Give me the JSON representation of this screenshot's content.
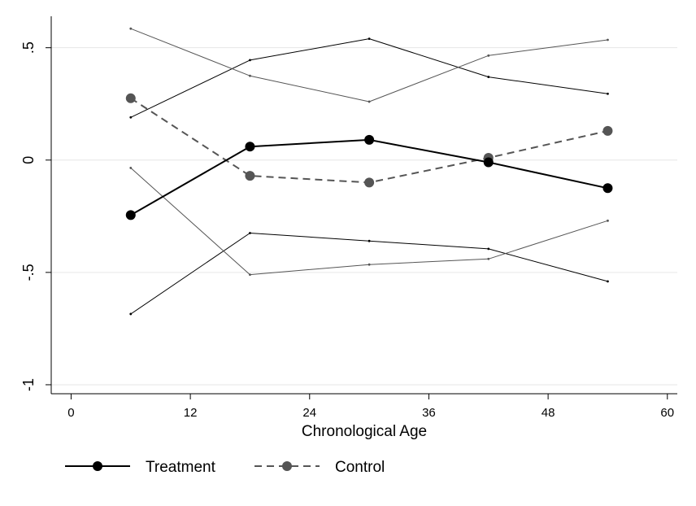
{
  "chart_data": {
    "type": "line",
    "xlabel": "Chronological Age",
    "ylabel": "",
    "xlim": [
      -2,
      61
    ],
    "ylim": [
      -1.04,
      0.64
    ],
    "xticks": [
      0,
      12,
      24,
      36,
      48,
      60
    ],
    "xtick_labels": [
      "0",
      "12",
      "24",
      "36",
      "48",
      "60"
    ],
    "yticks": [
      0.5,
      0,
      -0.5,
      -1
    ],
    "ytick_labels": [
      ".5",
      "0",
      "-.5",
      "-1"
    ],
    "grid": "horizontal",
    "legend": {
      "position": "bottom",
      "entries": [
        "Treatment",
        "Control"
      ]
    },
    "x": [
      6,
      18,
      30,
      42,
      54
    ],
    "series": [
      {
        "name": "Treatment",
        "role": "mean",
        "color": "#000000",
        "style": "solid",
        "marker": "circle",
        "values": [
          -0.245,
          0.06,
          0.09,
          -0.01,
          -0.125
        ]
      },
      {
        "name": "Control",
        "role": "mean",
        "color": "#555555",
        "style": "dashed",
        "marker": "circle",
        "values": [
          0.275,
          -0.07,
          -0.1,
          0.01,
          0.13
        ]
      },
      {
        "role": "treatment-upper",
        "color": "#000000",
        "style": "thin",
        "values": [
          0.19,
          0.445,
          0.54,
          0.37,
          0.295
        ]
      },
      {
        "role": "treatment-lower",
        "color": "#000000",
        "style": "thin",
        "values": [
          -0.685,
          -0.325,
          -0.36,
          -0.395,
          -0.54
        ]
      },
      {
        "role": "control-upper",
        "color": "#555555",
        "style": "thin",
        "values": [
          0.585,
          0.375,
          0.26,
          0.465,
          0.535
        ]
      },
      {
        "role": "control-lower",
        "color": "#555555",
        "style": "thin",
        "values": [
          -0.035,
          -0.51,
          -0.465,
          -0.44,
          -0.27
        ]
      }
    ]
  }
}
